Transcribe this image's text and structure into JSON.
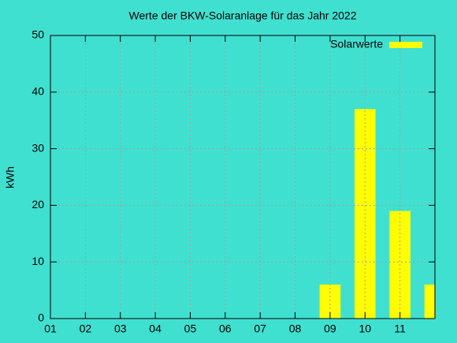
{
  "chart_data": {
    "type": "bar",
    "title": "Werte der BKW-Solaranlage für das Jahr 2022",
    "y_label": "kWh",
    "series": [
      {
        "name": "Solarwerte",
        "color": "#ffff00",
        "x": [
          9,
          10,
          11,
          12
        ],
        "values": [
          6,
          37,
          19,
          6
        ]
      }
    ],
    "xlim": [
      1,
      12
    ],
    "xticks": [
      {
        "value": 1,
        "label": "01"
      },
      {
        "value": 2,
        "label": "02"
      },
      {
        "value": 3,
        "label": "03"
      },
      {
        "value": 4,
        "label": "04"
      },
      {
        "value": 5,
        "label": "05"
      },
      {
        "value": 6,
        "label": "06"
      },
      {
        "value": 7,
        "label": "07"
      },
      {
        "value": 8,
        "label": "08"
      },
      {
        "value": 9,
        "label": "09"
      },
      {
        "value": 10,
        "label": "10"
      },
      {
        "value": 11,
        "label": "11"
      }
    ],
    "ylim": [
      0,
      50
    ],
    "yticks": [
      0,
      10,
      20,
      30,
      40,
      50
    ],
    "grid": true,
    "legend": "top-right"
  }
}
